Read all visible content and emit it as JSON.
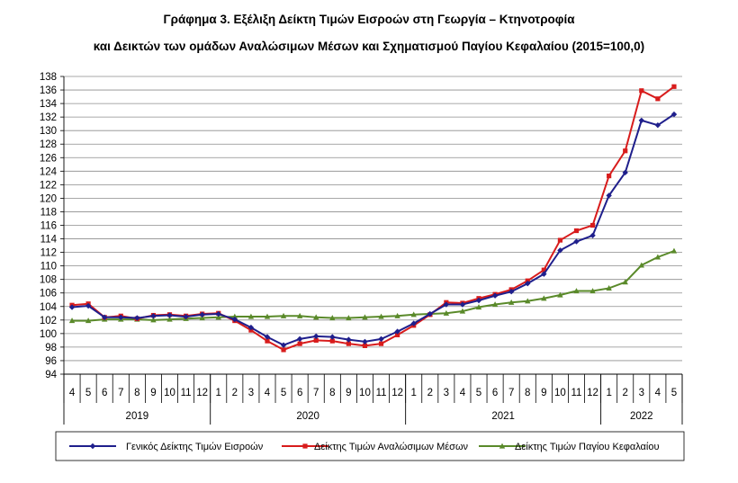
{
  "title_line1": "Γράφημα 3. Εξέλιξη Δείκτη Τιμών Εισροών στη Γεωργία – Κτηνοτροφία",
  "title_line2": "και Δεικτών των ομάδων Αναλώσιμων Μέσων και Σχηματισμού Παγίου Κεφαλαίου (2015=100,0)",
  "chart_data": {
    "type": "line",
    "ylim": [
      94,
      138
    ],
    "yticks": [
      94,
      96,
      98,
      100,
      102,
      104,
      106,
      108,
      110,
      112,
      114,
      116,
      118,
      120,
      122,
      124,
      126,
      128,
      130,
      132,
      134,
      136,
      138
    ],
    "grid": true,
    "legend_position": "bottom",
    "month_labels": [
      "4",
      "5",
      "6",
      "7",
      "8",
      "9",
      "10",
      "11",
      "12",
      "1",
      "2",
      "3",
      "4",
      "5",
      "6",
      "7",
      "8",
      "9",
      "10",
      "11",
      "12",
      "1",
      "2",
      "3",
      "4",
      "5",
      "6",
      "7",
      "8",
      "9",
      "10",
      "11",
      "12",
      "1",
      "2",
      "3",
      "4",
      "5"
    ],
    "years": [
      {
        "label": "2019",
        "months": 9
      },
      {
        "label": "2020",
        "months": 12
      },
      {
        "label": "2021",
        "months": 12
      },
      {
        "label": "2022",
        "months": 5
      }
    ],
    "series": [
      {
        "name": "Γενικός Δείκτης Τιμών Εισροών",
        "color": "#1f1f8c",
        "marker": "diamond",
        "values": [
          103.9,
          104.1,
          102.4,
          102.4,
          102.3,
          102.6,
          102.7,
          102.5,
          102.8,
          102.9,
          102.1,
          100.9,
          99.5,
          98.3,
          99.2,
          99.6,
          99.5,
          99.1,
          98.8,
          99.2,
          100.3,
          101.5,
          102.9,
          104.3,
          104.3,
          104.9,
          105.6,
          106.2,
          107.4,
          108.8,
          112.3,
          113.6,
          114.5,
          120.4,
          123.8,
          131.5,
          130.8,
          132.4
        ]
      },
      {
        "name": "Δείκτης Τιμών Αναλώσιμων Μέσων",
        "color": "#d81c1c",
        "marker": "square",
        "values": [
          104.2,
          104.4,
          102.4,
          102.6,
          102.2,
          102.7,
          102.8,
          102.6,
          102.9,
          103.0,
          101.9,
          100.5,
          98.9,
          97.6,
          98.5,
          99.0,
          98.9,
          98.5,
          98.2,
          98.5,
          99.8,
          101.2,
          102.8,
          104.6,
          104.5,
          105.2,
          105.8,
          106.5,
          107.8,
          109.4,
          113.8,
          115.2,
          116.0,
          123.3,
          127.0,
          135.9,
          134.7,
          136.5
        ]
      },
      {
        "name": "Δείκτης Τιμών Παγίου Κεφαλαίου",
        "color": "#5a8a2a",
        "marker": "triangle",
        "values": [
          101.9,
          101.9,
          102.1,
          102.1,
          102.1,
          102.0,
          102.1,
          102.2,
          102.3,
          102.4,
          102.5,
          102.5,
          102.5,
          102.6,
          102.6,
          102.4,
          102.3,
          102.3,
          102.4,
          102.5,
          102.6,
          102.8,
          102.9,
          103.0,
          103.3,
          103.9,
          104.3,
          104.6,
          104.8,
          105.2,
          105.7,
          106.3,
          106.3,
          106.7,
          107.6,
          110.1,
          111.3,
          112.2
        ]
      }
    ]
  }
}
